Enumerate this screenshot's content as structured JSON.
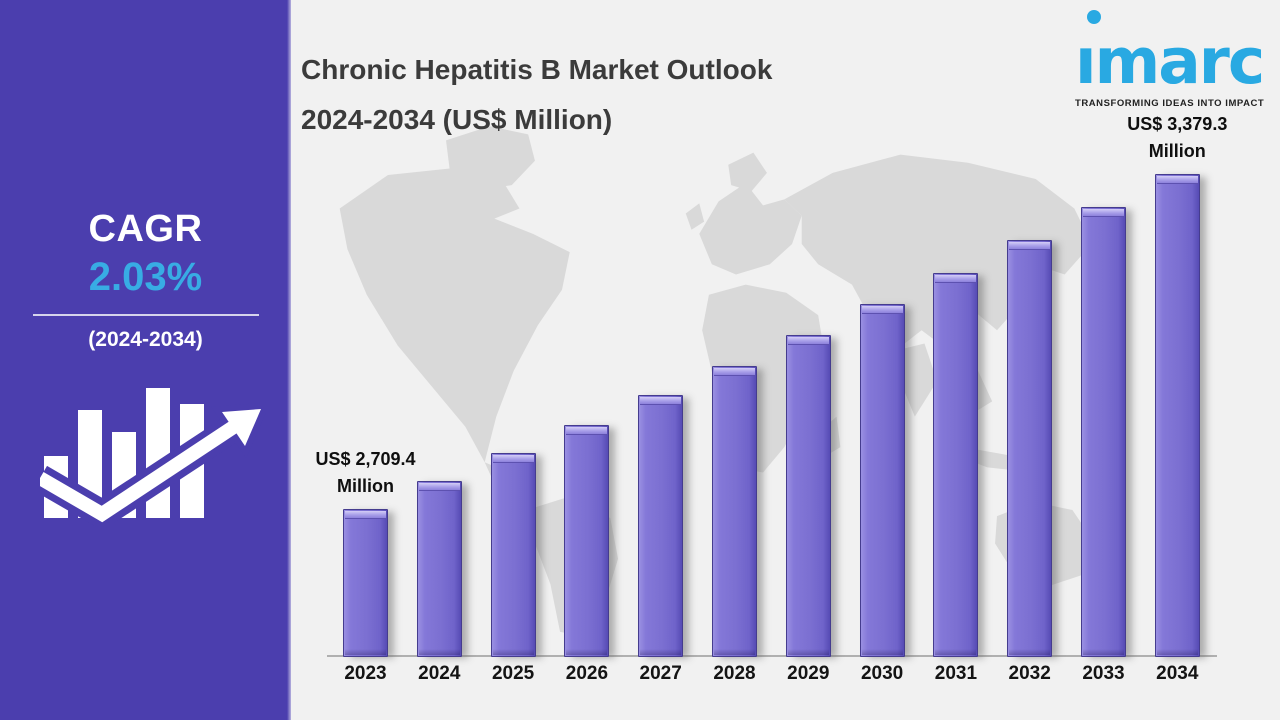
{
  "sidebar": {
    "cagr_label": "CAGR",
    "cagr_value": "2.03%",
    "cagr_period": "(2024-2034)"
  },
  "header": {
    "title_line1": "Chronic Hepatitis B Market Outlook",
    "title_line2": "2024-2034 (US$ Million)"
  },
  "logo": {
    "brand": "imarc",
    "brand_display": "ımarc",
    "tagline": "TRANSFORMING IDEAS INTO IMPACT"
  },
  "colors": {
    "sidebar_background": "#4b3eae",
    "cagr_accent_blue": "#38ace4",
    "logo_blue": "#29a9e2",
    "bar_purple": "#7b6fd1",
    "panel_background": "#f1f1f1",
    "map_gray": "#d9d9d9"
  },
  "chart_data": {
    "type": "bar",
    "title": "Chronic Hepatitis B Market Outlook 2024-2034 (US$ Million)",
    "unit": "US$ Million",
    "categories": [
      "2023",
      "2024",
      "2025",
      "2026",
      "2027",
      "2028",
      "2029",
      "2030",
      "2031",
      "2032",
      "2033",
      "2034"
    ],
    "values": [
      2709.4,
      2764.4,
      2820.5,
      2877.8,
      2936.2,
      2995.8,
      3056.6,
      3118.7,
      3182.0,
      3246.6,
      3312.5,
      3379.3
    ],
    "values_note": "Only the first (2023) and last (2034) bars carry data labels; intermediate values estimated from the 2.03% CAGR trend",
    "bar_labels": [
      {
        "index": 0,
        "line1": "US$ 2,709.4",
        "line2": "Million"
      },
      {
        "index": 11,
        "line1": "US$ 3,379.3",
        "line2": "Million"
      }
    ],
    "cagr": "2.03%",
    "cagr_period": "2024-2034",
    "xlabel": "",
    "ylabel": "",
    "ylim": [
      2413,
      3379.3
    ],
    "grid": false,
    "legend": "none",
    "background": "light gray world-map silhouette"
  }
}
